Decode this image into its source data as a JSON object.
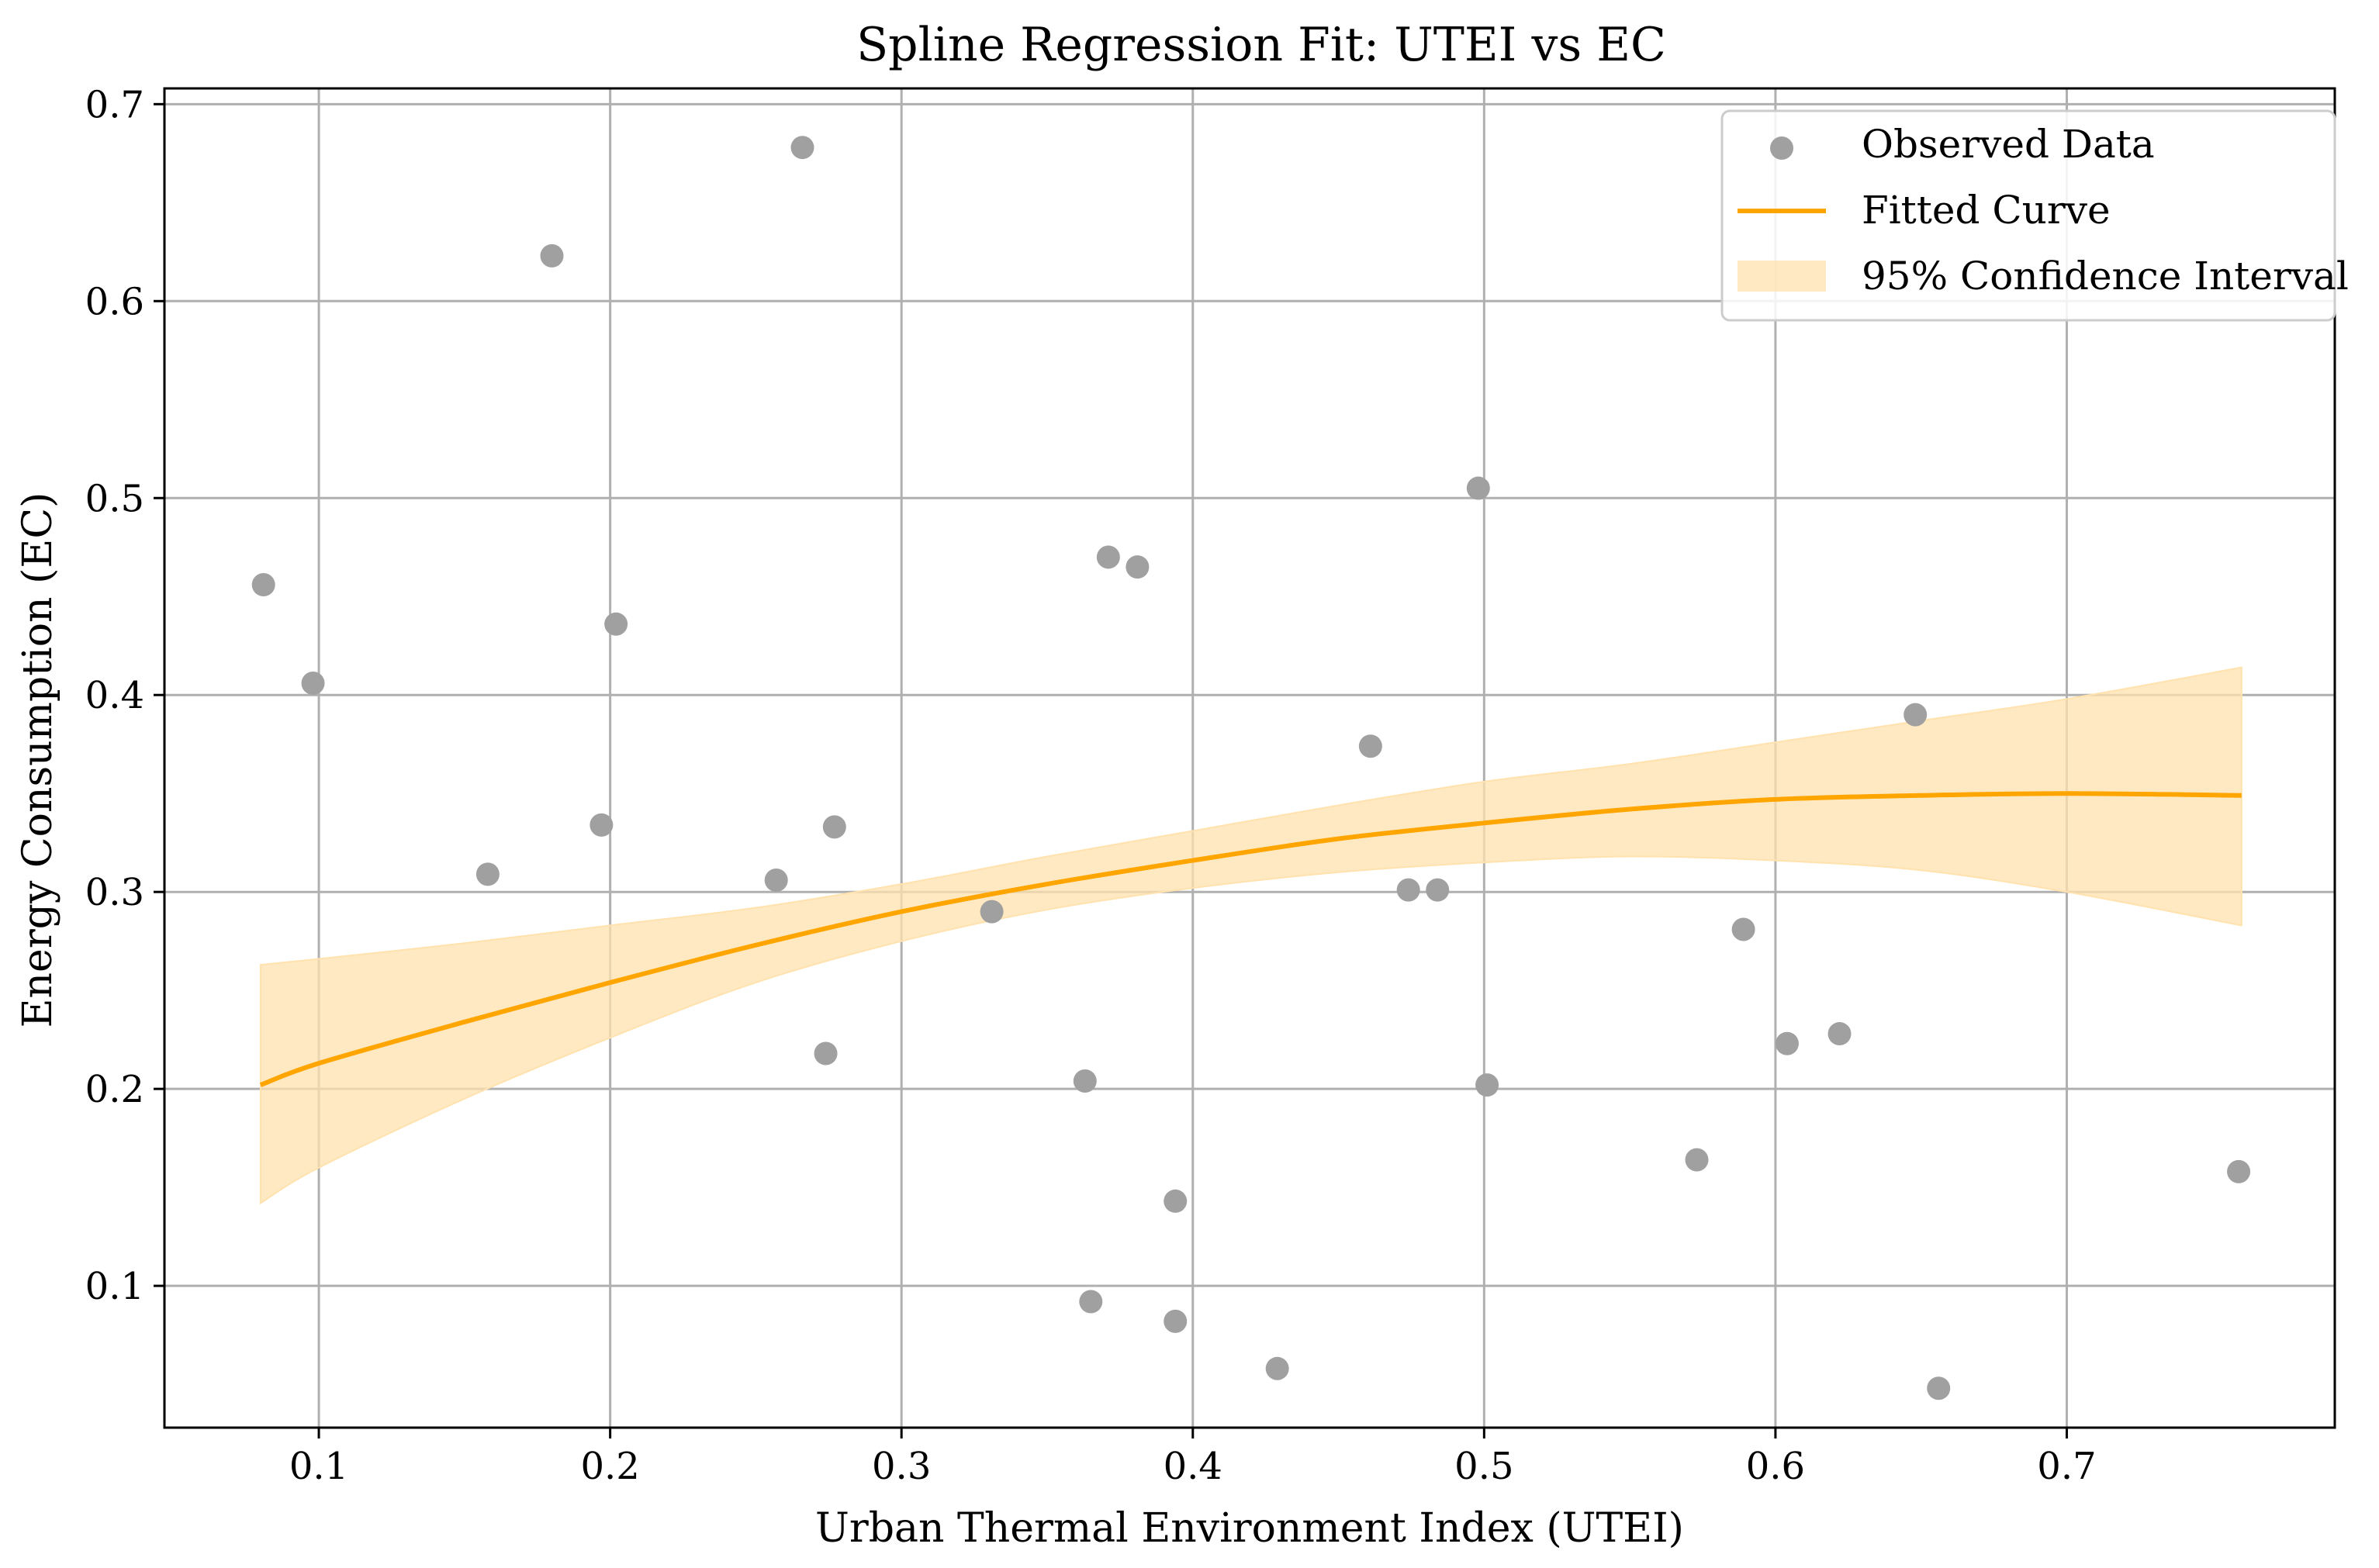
{
  "chart_data": {
    "type": "scatter",
    "title": "Spline Regression Fit: UTEI vs EC",
    "xlabel": "Urban Thermal Environment Index (UTEI)",
    "ylabel": "Energy Consumption (EC)",
    "xlim": [
      0.047,
      0.792
    ],
    "ylim": [
      0.028,
      0.708
    ],
    "xticks": [
      0.1,
      0.2,
      0.3,
      0.4,
      0.5,
      0.6,
      0.7
    ],
    "xtick_labels": [
      "0.1",
      "0.2",
      "0.3",
      "0.4",
      "0.5",
      "0.6",
      "0.7"
    ],
    "yticks": [
      0.1,
      0.2,
      0.3,
      0.4,
      0.5,
      0.6,
      0.7
    ],
    "ytick_labels": [
      "0.1",
      "0.2",
      "0.3",
      "0.4",
      "0.5",
      "0.6",
      "0.7"
    ],
    "grid": true,
    "legend_position": "top-right",
    "series": [
      {
        "name": "Observed Data",
        "kind": "scatter",
        "color": "#a0a0a0",
        "points": [
          {
            "x": 0.081,
            "y": 0.456
          },
          {
            "x": 0.098,
            "y": 0.406
          },
          {
            "x": 0.158,
            "y": 0.309
          },
          {
            "x": 0.18,
            "y": 0.623
          },
          {
            "x": 0.197,
            "y": 0.334
          },
          {
            "x": 0.202,
            "y": 0.436
          },
          {
            "x": 0.257,
            "y": 0.306
          },
          {
            "x": 0.266,
            "y": 0.678
          },
          {
            "x": 0.274,
            "y": 0.218
          },
          {
            "x": 0.277,
            "y": 0.333
          },
          {
            "x": 0.331,
            "y": 0.29
          },
          {
            "x": 0.363,
            "y": 0.204
          },
          {
            "x": 0.365,
            "y": 0.092
          },
          {
            "x": 0.371,
            "y": 0.47
          },
          {
            "x": 0.381,
            "y": 0.465
          },
          {
            "x": 0.394,
            "y": 0.143
          },
          {
            "x": 0.394,
            "y": 0.082
          },
          {
            "x": 0.429,
            "y": 0.058
          },
          {
            "x": 0.461,
            "y": 0.374
          },
          {
            "x": 0.474,
            "y": 0.301
          },
          {
            "x": 0.484,
            "y": 0.301
          },
          {
            "x": 0.498,
            "y": 0.505
          },
          {
            "x": 0.501,
            "y": 0.202
          },
          {
            "x": 0.573,
            "y": 0.164
          },
          {
            "x": 0.589,
            "y": 0.281
          },
          {
            "x": 0.604,
            "y": 0.223
          },
          {
            "x": 0.622,
            "y": 0.228
          },
          {
            "x": 0.648,
            "y": 0.39
          },
          {
            "x": 0.656,
            "y": 0.048
          },
          {
            "x": 0.759,
            "y": 0.158
          }
        ]
      },
      {
        "name": "Fitted Curve",
        "kind": "line",
        "color": "#ffa500",
        "x": [
          0.08,
          0.1,
          0.15,
          0.2,
          0.25,
          0.3,
          0.35,
          0.4,
          0.45,
          0.5,
          0.55,
          0.6,
          0.65,
          0.7,
          0.76
        ],
        "y": [
          0.202,
          0.213,
          0.234,
          0.254,
          0.273,
          0.29,
          0.304,
          0.316,
          0.327,
          0.335,
          0.342,
          0.347,
          0.349,
          0.35,
          0.349
        ]
      },
      {
        "name": "95% Confidence Interval",
        "kind": "band",
        "color": "#ffe2ae",
        "x": [
          0.08,
          0.1,
          0.15,
          0.2,
          0.25,
          0.3,
          0.35,
          0.4,
          0.45,
          0.5,
          0.55,
          0.6,
          0.65,
          0.7,
          0.76
        ],
        "lower": [
          0.142,
          0.16,
          0.195,
          0.226,
          0.254,
          0.275,
          0.291,
          0.302,
          0.31,
          0.315,
          0.318,
          0.316,
          0.311,
          0.3,
          0.283
        ],
        "upper": [
          0.263,
          0.266,
          0.274,
          0.283,
          0.292,
          0.304,
          0.318,
          0.331,
          0.344,
          0.356,
          0.365,
          0.376,
          0.387,
          0.398,
          0.414
        ]
      }
    ]
  }
}
